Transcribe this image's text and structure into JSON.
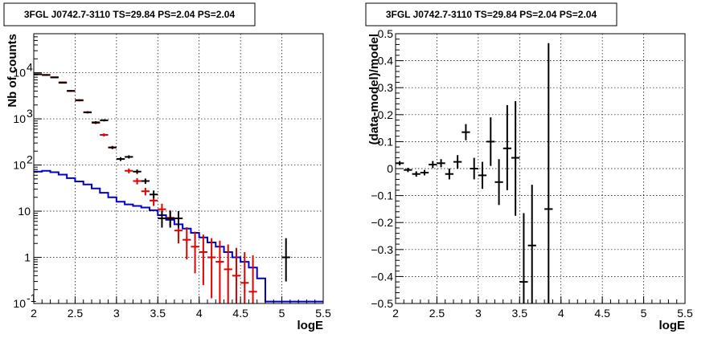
{
  "colors": {
    "data": "#000000",
    "model": "#e00000",
    "source": "#0000cc",
    "background": "#ffffff"
  },
  "chart_data": [
    {
      "type": "line",
      "title": "3FGL J0742.7-3110 TS=29.84 PS=2.04 PS=2.04",
      "xlabel": "logE",
      "ylabel": "Nb of counts",
      "xlim": [
        2,
        5.5
      ],
      "ylim": [
        0.1,
        70000
      ],
      "yscale": "log",
      "grid": true,
      "xticks": [
        "2",
        "2.5",
        "3",
        "3.5",
        "4",
        "4.5",
        "5",
        "5.5"
      ],
      "yticks": [
        {
          "v": 0.1,
          "label": "10",
          "sup": "-1"
        },
        {
          "v": 1,
          "label": "1",
          "sup": ""
        },
        {
          "v": 10,
          "label": "10",
          "sup": ""
        },
        {
          "v": 100,
          "label": "10",
          "sup": "2"
        },
        {
          "v": 1000,
          "label": "10",
          "sup": "3"
        },
        {
          "v": 10000,
          "label": "10",
          "sup": "4"
        }
      ],
      "bin_edges": [
        2.0,
        2.1,
        2.2,
        2.3,
        2.4,
        2.5,
        2.6,
        2.7,
        2.8,
        2.9,
        3.0,
        3.1,
        3.2,
        3.3,
        3.4,
        3.5,
        3.6,
        3.7,
        3.8,
        3.9,
        4.0,
        4.1,
        4.2,
        4.3,
        4.4,
        4.5,
        4.6,
        4.7,
        4.8,
        4.9,
        5.0,
        5.1,
        5.2,
        5.3,
        5.4,
        5.5
      ],
      "series": [
        {
          "role": "source",
          "style": "step",
          "values": [
            72,
            75,
            70,
            62,
            52,
            44,
            38,
            31,
            25,
            20,
            16,
            14,
            13,
            12,
            10.5,
            8.2,
            6.5,
            5.2,
            4.2,
            3.4,
            2.7,
            2.1,
            1.7,
            1.3,
            1.0,
            0.8,
            0.6,
            0.35,
            0.11,
            0.11,
            0.11,
            0.11,
            0.11,
            0.11,
            0.11
          ]
        },
        {
          "role": "model",
          "style": "errorbars",
          "x": [
            2.05,
            2.15,
            2.25,
            2.35,
            2.45,
            2.55,
            2.65,
            2.75,
            2.85,
            2.95,
            3.05,
            3.15,
            3.25,
            3.35,
            3.45,
            3.55,
            3.65,
            3.75,
            3.85,
            3.95,
            4.05,
            4.15,
            4.25,
            4.35,
            4.45,
            4.55,
            4.65
          ],
          "y": [
            9200,
            9000,
            8000,
            6200,
            4000,
            2500,
            1400,
            820,
            450,
            240,
            135,
            75,
            45,
            27,
            17,
            11,
            7.2,
            3.8,
            2.4,
            1.7,
            1.3,
            1.0,
            0.8,
            0.55,
            0.4,
            0.28,
            0.18
          ],
          "ylo": [
            9000,
            8800,
            7800,
            6000,
            3850,
            2400,
            1330,
            770,
            415,
            220,
            122,
            66,
            38,
            22,
            13,
            7.7,
            4.6,
            2.0,
            0.9,
            0.45,
            0.25,
            0.13,
            0.1,
            0.1,
            0.1,
            0.1,
            0.1
          ],
          "yhi": [
            9400,
            9200,
            8200,
            6400,
            4150,
            2600,
            1470,
            870,
            485,
            260,
            148,
            84,
            52,
            32,
            21,
            14.5,
            10.5,
            6.2,
            4.5,
            3.6,
            3.1,
            2.6,
            2.3,
            1.9,
            1.6,
            1.3,
            1.1
          ]
        },
        {
          "role": "data",
          "style": "errorbars",
          "x": [
            2.05,
            2.15,
            2.25,
            2.35,
            2.45,
            2.55,
            2.65,
            2.75,
            2.85,
            2.95,
            3.05,
            3.15,
            3.25,
            3.35,
            3.45,
            3.55,
            3.65,
            3.75,
            5.05
          ],
          "y": [
            9300,
            8900,
            7900,
            6050,
            4050,
            2550,
            1380,
            840,
            930,
            240,
            135,
            150,
            72,
            45,
            23,
            7,
            7,
            7,
            1
          ],
          "ylo": [
            9100,
            8700,
            7700,
            5850,
            3900,
            2450,
            1310,
            790,
            880,
            225,
            123,
            138,
            64,
            39,
            19,
            4.4,
            4.4,
            4.4,
            0.3
          ],
          "yhi": [
            9500,
            9100,
            8100,
            6250,
            4200,
            2650,
            1450,
            890,
            980,
            255,
            147,
            162,
            80,
            51,
            28,
            10,
            10,
            10,
            2.6
          ]
        }
      ]
    },
    {
      "type": "scatter",
      "title": "3FGL J0742.7-3110 TS=29.84 PS=2.04 PS=2.04",
      "xlabel": "logE",
      "ylabel": "(data-model)/model",
      "xlim": [
        2,
        5.5
      ],
      "ylim": [
        -0.5,
        0.5
      ],
      "grid": true,
      "xticks": [
        "2",
        "2.5",
        "3",
        "3.5",
        "4",
        "4.5",
        "5",
        "5.5"
      ],
      "yticks": [
        "−0.5",
        "−0.4",
        "−0.3",
        "−0.2",
        "−0.1",
        "0",
        "0.1",
        "0.2",
        "0.3",
        "0.4",
        "0.5"
      ],
      "series": [
        {
          "role": "data",
          "x": [
            2.05,
            2.15,
            2.25,
            2.35,
            2.45,
            2.55,
            2.65,
            2.75,
            2.85,
            2.95,
            3.05,
            3.15,
            3.25,
            3.35,
            3.45,
            3.55,
            3.65,
            3.85
          ],
          "y": [
            0.02,
            -0.005,
            -0.02,
            -0.015,
            0.015,
            0.02,
            -0.02,
            0.025,
            0.135,
            0.0,
            -0.025,
            0.1,
            -0.05,
            0.075,
            0.04,
            -0.42,
            -0.285,
            -0.15
          ],
          "ylo": [
            0.012,
            -0.013,
            -0.03,
            -0.025,
            0.002,
            0.005,
            -0.04,
            0.0,
            0.105,
            -0.04,
            -0.075,
            0.01,
            -0.135,
            -0.08,
            -0.175,
            -0.5,
            -0.5,
            -0.5
          ],
          "yhi": [
            0.028,
            0.003,
            -0.01,
            -0.005,
            0.028,
            0.035,
            0.0,
            0.05,
            0.165,
            0.04,
            0.025,
            0.19,
            0.035,
            0.235,
            0.25,
            -0.165,
            -0.06,
            0.465
          ]
        }
      ]
    }
  ]
}
